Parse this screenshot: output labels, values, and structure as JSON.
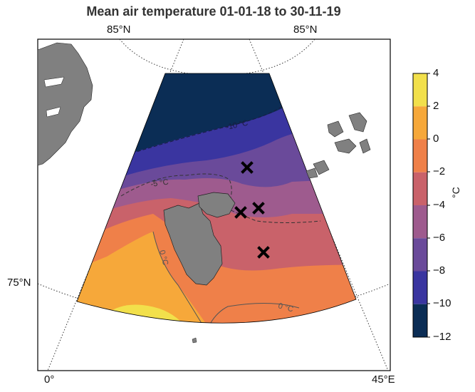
{
  "title": "Mean air temperature 01-01-18 to 30-11-19",
  "graticule_labels": {
    "top_left": "85°N",
    "top_right": "85°N",
    "left": "75°N",
    "bottom_left": "0°",
    "bottom_right": "45°E"
  },
  "contour_labels": {
    "minus10": "-10 °C",
    "minus5": "-5 °C",
    "zero_a": "0 °C",
    "zero_b": "0 °C"
  },
  "colorbar": {
    "unit": "°C",
    "ticks": [
      "4",
      "2",
      "0",
      "−2",
      "−4",
      "−6",
      "−8",
      "−10",
      "−12"
    ],
    "levels": [
      {
        "from": 2,
        "to": 4,
        "color": "#f2e04b"
      },
      {
        "from": 0,
        "to": 2,
        "color": "#f6a83a"
      },
      {
        "from": -2,
        "to": 0,
        "color": "#ef8049"
      },
      {
        "from": -4,
        "to": -2,
        "color": "#c9626a"
      },
      {
        "from": -6,
        "to": -4,
        "color": "#9e5b8e"
      },
      {
        "from": -8,
        "to": -6,
        "color": "#6a4a9a"
      },
      {
        "from": -10,
        "to": -8,
        "color": "#3a35a0"
      },
      {
        "from": -12,
        "to": -10,
        "color": "#0b2d55"
      }
    ]
  },
  "land_color": "#808080",
  "station_marker": "x-mark-icon"
}
